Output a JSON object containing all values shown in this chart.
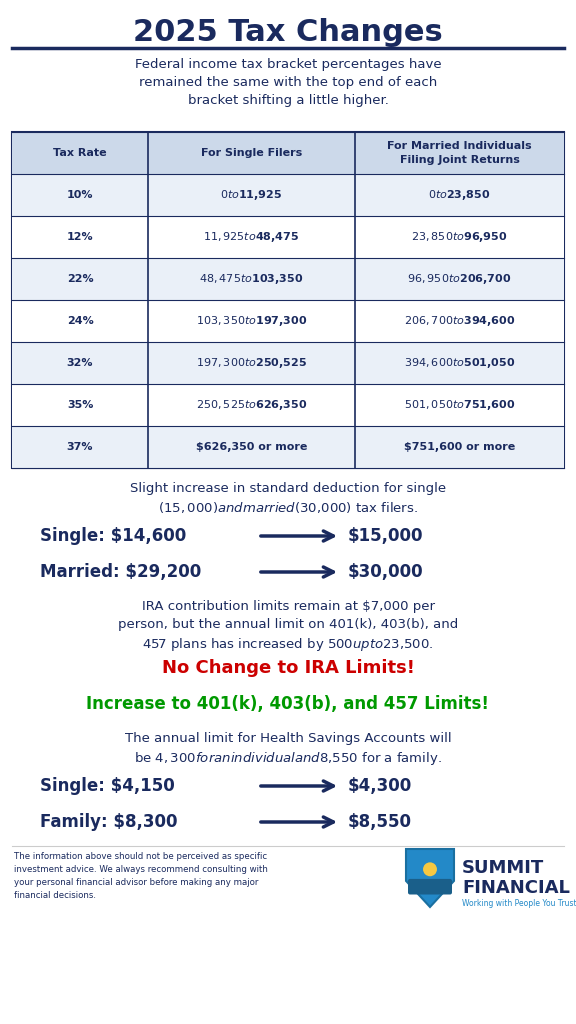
{
  "title": "2025 Tax Changes",
  "title_color": "#1a2a5e",
  "bg_color": "#ffffff",
  "dark_blue": "#1a2a5e",
  "red": "#cc0000",
  "green": "#009900",
  "bracket_intro_lines": [
    "Federal income tax bracket percentages have",
    "remained the same with the top end of each",
    "bracket shifting a little higher."
  ],
  "table_headers": [
    "Tax Rate",
    "For Single Filers",
    "For Married Individuals\nFiling Joint Returns"
  ],
  "table_rows": [
    [
      "10%",
      "$0 to $11,925",
      "$0 to $23,850"
    ],
    [
      "12%",
      "$11,925 to $48,475",
      "$23,850 to $96,950"
    ],
    [
      "22%",
      "$48,475 to $103,350",
      "$96,950 to $206,700"
    ],
    [
      "24%",
      "$103,350 to $197,300",
      "$206,700 to $394,600"
    ],
    [
      "32%",
      "$197,300 to $250,525",
      "$394,600 to $501,050"
    ],
    [
      "35%",
      "$250,525 to $626,350",
      "$501,050 to $751,600"
    ],
    [
      "37%",
      "$626,350 or more",
      "$751,600 or more"
    ]
  ],
  "std_deduction_intro_lines": [
    "Slight increase in standard deduction for single",
    "($15,000) and married ($30,000) tax filers."
  ],
  "std_single_old": "Single: $14,600",
  "std_single_new": "$15,000",
  "std_married_old": "Married: $29,200",
  "std_married_new": "$30,000",
  "ira_intro_lines": [
    "IRA contribution limits remain at $7,000 per",
    "person, but the annual limit on 401(k), 403(b), and",
    "457 plans has increased by $500 up to $23,500."
  ],
  "ira_line1": "No Change to IRA Limits!",
  "ira_line2": "Increase to 401(k), 403(b), and 457 Limits!",
  "hsa_intro_lines": [
    "The annual limit for Health Savings Accounts will",
    "be $4,300 for an individual and $8,550 for a family."
  ],
  "hsa_single_old": "Single: $4,150",
  "hsa_single_new": "$4,300",
  "hsa_family_old": "Family: $8,300",
  "hsa_family_new": "$8,550",
  "disclaimer_lines": [
    "The information above should not be perceived as specific",
    "investment advice. We always recommend consulting with",
    "your personal financial advisor before making any major",
    "financial decisions."
  ],
  "company_line1": "SUMMIT",
  "company_line2": "FINANCIAL",
  "company_sub": "Working with People You Trust"
}
